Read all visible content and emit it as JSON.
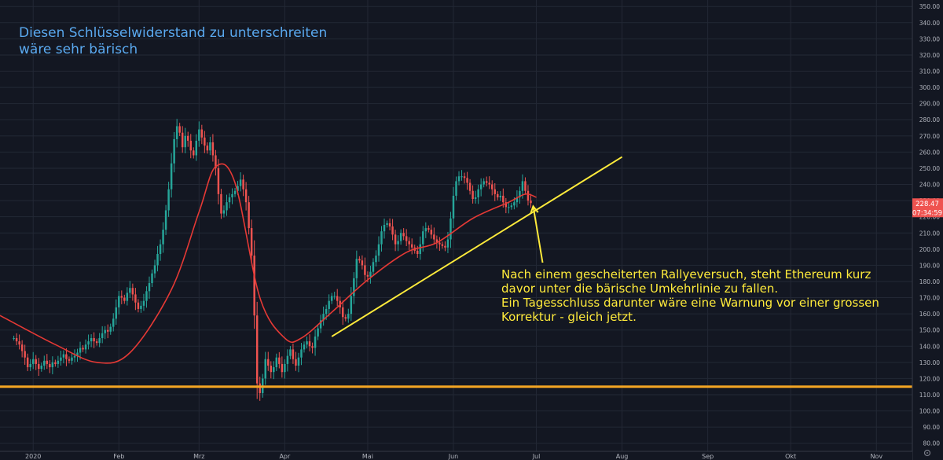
{
  "annotations": {
    "title_lines": [
      "Diesen Schlüsselwiderstand zu unterschreiten",
      "wäre sehr bärisch"
    ],
    "body_lines": [
      "Nach einem gescheiterten Rallyeversuch, steht Ethereum kurz",
      "davor unter die bärische Umkehrlinie zu fallen.",
      "Ein Tagesschluss darunter wäre eine Warnung vor einer grossen",
      "Korrektur - gleich jetzt."
    ]
  },
  "price_badge": {
    "price": "228.47",
    "countdown": "07:34:59"
  },
  "colors": {
    "up": "#26a69a",
    "down": "#ef5350",
    "ma": "#e53935",
    "trendline": "#ffeb3b",
    "support": "#f5a623",
    "background": "#131722",
    "grid": "#232835",
    "axis_text": "#b2b5be"
  },
  "chart_data": {
    "type": "candlestick",
    "y_axis": {
      "ticks": [
        80,
        90,
        100,
        110,
        120,
        130,
        140,
        150,
        160,
        170,
        180,
        190,
        200,
        210,
        220,
        230,
        240,
        250,
        260,
        270,
        280,
        290,
        300,
        310,
        320,
        330,
        340,
        350
      ],
      "tick_labels": [
        "80.00",
        "90.00",
        "100.00",
        "110.00",
        "120.00",
        "130.00",
        "140.00",
        "150.00",
        "160.00",
        "170.00",
        "180.00",
        "190.00",
        "200.00",
        "210.00",
        "220.00",
        "230.00",
        "240.00",
        "250.00",
        "260.00",
        "270.00",
        "280.00",
        "290.00",
        "300.00",
        "310.00",
        "320.00",
        "330.00",
        "340.00",
        "350.00"
      ],
      "range": [
        75,
        354
      ]
    },
    "x_axis": {
      "labels": [
        "2020",
        "Feb",
        "Mrz",
        "Apr",
        "Mai",
        "Jun",
        "Jul",
        "Aug",
        "Sep",
        "Okt",
        "Nov"
      ],
      "label_dates": [
        "2020-01-01",
        "2020-02-01",
        "2020-03-01",
        "2020-04-01",
        "2020-05-01",
        "2020-06-01",
        "2020-07-01",
        "2020-08-01",
        "2020-09-01",
        "2020-10-01",
        "2020-11-01"
      ],
      "range": [
        "2019-12-20",
        "2020-11-14"
      ]
    },
    "grid": true,
    "series": [
      {
        "type": "candlestick",
        "start_date": "2019-12-25",
        "interval": "1D",
        "close": [
          145,
          143,
          141,
          137,
          133,
          127,
          129,
          132,
          129,
          126,
          128,
          131,
          129,
          127,
          130,
          129,
          131,
          133,
          135,
          132,
          131,
          133,
          134,
          136,
          139,
          138,
          141,
          143,
          145,
          143,
          142,
          145,
          148,
          150,
          149,
          152,
          157,
          164,
          171,
          170,
          168,
          173,
          176,
          172,
          167,
          163,
          165,
          168,
          174,
          179,
          185,
          190,
          197,
          203,
          212,
          224,
          237,
          253,
          268,
          276,
          272,
          263,
          270,
          267,
          261,
          258,
          267,
          274,
          269,
          264,
          261,
          266,
          258,
          250,
          234,
          222,
          224,
          229,
          232,
          234,
          236,
          239,
          243,
          237,
          229,
          213,
          196,
          159,
          117,
          111,
          120,
          132,
          128,
          124,
          127,
          133,
          129,
          124,
          129,
          134,
          138,
          132,
          128,
          133,
          138,
          141,
          143,
          140,
          139,
          146,
          151,
          156,
          160,
          163,
          168,
          171,
          171,
          168,
          164,
          158,
          157,
          160,
          171,
          182,
          194,
          193,
          190,
          184,
          183,
          186,
          192,
          196,
          203,
          211,
          215,
          216,
          214,
          209,
          203,
          205,
          210,
          208,
          205,
          203,
          201,
          199,
          197,
          203,
          211,
          213,
          212,
          209,
          206,
          204,
          203,
          202,
          201,
          206,
          219,
          233,
          242,
          245,
          245,
          244,
          241,
          236,
          231,
          232,
          237,
          240,
          242,
          241,
          240,
          237,
          234,
          232,
          233,
          229,
          226,
          226,
          227,
          229,
          232,
          236,
          242,
          236,
          230,
          228.47
        ]
      },
      {
        "type": "moving_average",
        "points": [
          [
            "2019-12-20",
            159
          ],
          [
            "2020-01-09",
            141
          ],
          [
            "2020-01-24",
            130
          ],
          [
            "2020-02-05",
            136
          ],
          [
            "2020-02-20",
            175
          ],
          [
            "2020-03-01",
            223
          ],
          [
            "2020-03-07",
            251
          ],
          [
            "2020-03-14",
            241
          ],
          [
            "2020-03-23",
            170
          ],
          [
            "2020-04-01",
            145
          ],
          [
            "2020-04-07",
            145
          ],
          [
            "2020-04-18",
            161
          ],
          [
            "2020-05-01",
            181
          ],
          [
            "2020-05-15",
            198
          ],
          [
            "2020-05-26",
            204
          ],
          [
            "2020-06-08",
            219
          ],
          [
            "2020-06-21",
            229
          ],
          [
            "2020-06-27",
            234
          ],
          [
            "2020-07-01",
            232
          ]
        ]
      },
      {
        "type": "trendline",
        "from": [
          "2020-04-18",
          146
        ],
        "to": [
          "2020-08-01",
          257
        ]
      },
      {
        "type": "horizontal_line",
        "value": 115
      }
    ]
  }
}
